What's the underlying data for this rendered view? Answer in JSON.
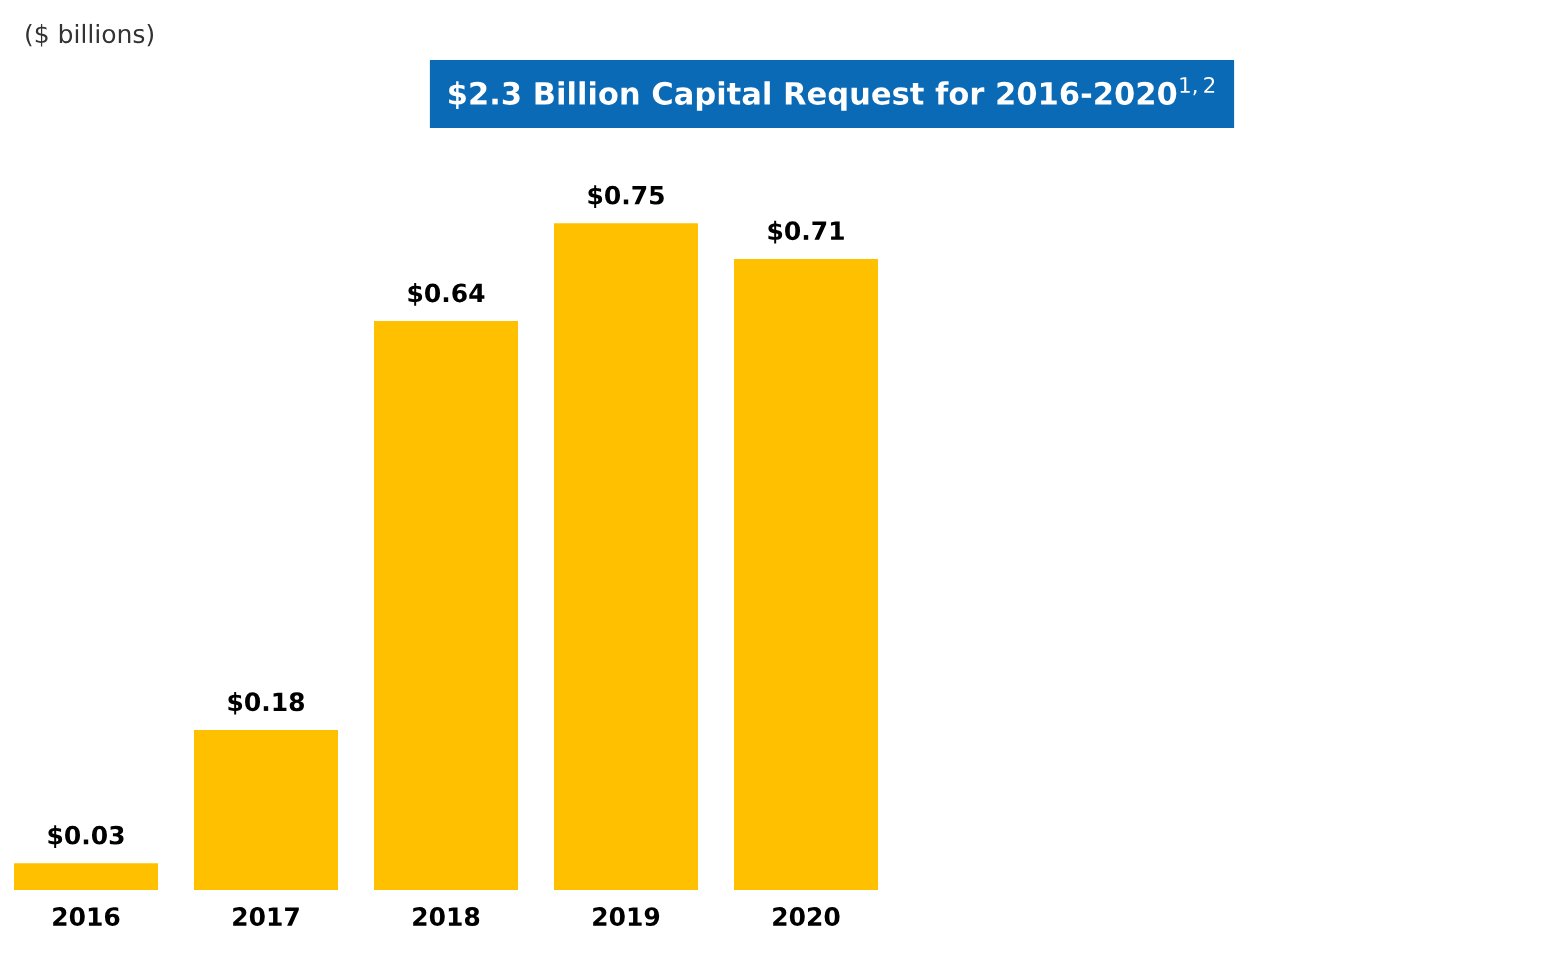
{
  "chart_data": {
    "type": "bar",
    "title": "$2.3 Billion Capital Request for 2016-2020$^{1,2}$",
    "annotations": [
      "($ billions)"
    ],
    "categories": [
      "2016",
      "2017",
      "2018",
      "2019",
      "2020"
    ],
    "values": [
      0.03,
      0.18,
      0.64,
      0.75,
      0.71
    ],
    "value_labels": [
      "$0.03",
      "$0.18",
      "$0.64",
      "$0.75",
      "$0.71"
    ],
    "color": "#ffc000",
    "grid": false,
    "legend": false
  }
}
